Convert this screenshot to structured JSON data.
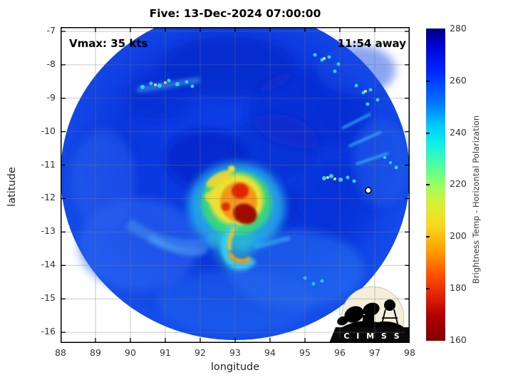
{
  "title": "Five: 13-Dec-2024 07:00:00",
  "annotations": {
    "vmax": "Vmax: 35 kts",
    "timing": "11:54 away"
  },
  "axes": {
    "xlabel": "longitude",
    "ylabel": "latitude",
    "x_ticks": [
      "88",
      "89",
      "90",
      "91",
      "92",
      "93",
      "94",
      "95",
      "96",
      "97",
      "98"
    ],
    "y_ticks": [
      "-7",
      "-8",
      "-9",
      "-10",
      "-11",
      "-12",
      "-13",
      "-14",
      "-15",
      "-16"
    ]
  },
  "colorbar": {
    "label": "Brightness Temp - Horizontal Polarization",
    "ticks": [
      "280",
      "260",
      "240",
      "220",
      "200",
      "180",
      "160"
    ]
  },
  "logo": {
    "text": "C I M S S"
  },
  "chart_data": {
    "type": "heatmap",
    "title": "Five: 13-Dec-2024 07:00:00",
    "xlabel": "longitude",
    "ylabel": "latitude",
    "xlim": [
      88,
      98
    ],
    "ylim": [
      -16.35,
      -6.87
    ],
    "x_ticks": [
      88,
      89,
      90,
      91,
      92,
      93,
      94,
      95,
      96,
      97,
      98
    ],
    "y_ticks": [
      -7,
      -8,
      -9,
      -10,
      -11,
      -12,
      -13,
      -14,
      -15,
      -16
    ],
    "grid": true,
    "colorbar": {
      "label": "Brightness Temp - Horizontal Polarization",
      "range": [
        160,
        280
      ],
      "ticks": [
        280,
        260,
        240,
        220,
        200,
        180,
        160
      ],
      "colormap": "reversed-jet: 160K dark red -> red -> orange -> yellow -> green -> cyan -> blue -> 280K dark navy"
    },
    "storm": {
      "name": "Five",
      "datetime": "13-Dec-2024 07:00:00",
      "vmax_kts": 35,
      "pass_timing": "11:54 away",
      "center_lon": 93.0,
      "center_lat": -12.5
    },
    "features": [
      {
        "name": "swath",
        "desc": "circular microwave swath centered near lon 93, lat -11.7, radius ~5 deg; background brightness temps 265-280 K (blue to dark navy), white (no data) outside"
      },
      {
        "name": "core-convection",
        "lon_range": [
          92.4,
          93.7
        ],
        "lat_range": [
          -13.1,
          -11.9
        ],
        "desc": "deep convection 160-210 K: yellow/orange mass with two dark-red cores near (93.1,-12.4) and (93.2,-12.7), surrounded by green/cyan ring 220-245 K"
      },
      {
        "name": "tail-band",
        "desc": "curved convective band 210-240 K curling from core south to lat -14 then hooking east near lon 93.5, comma shape"
      },
      {
        "name": "speckle-band-north",
        "lat": -9.0,
        "lon_range": [
          90.2,
          92.6
        ],
        "desc": "line of scattered 230-245 K cells (cyan with yellow cores)"
      },
      {
        "name": "speckles-northeast",
        "lon_range": [
          95.3,
          97.3
        ],
        "lat_range": [
          -9.5,
          -8.2
        ],
        "desc": "scattered shallow cells near swath edge"
      },
      {
        "name": "streaks-east",
        "lon_range": [
          95.5,
          97.5
        ],
        "lat_range": [
          -11.5,
          -9.8
        ],
        "desc": "diagonal cyan streaks"
      },
      {
        "name": "speckle-cluster-east",
        "lon_range": [
          94.7,
          95.7
        ],
        "lat": -12.3,
        "desc": "cluster of cyan/yellow cells"
      },
      {
        "name": "white-marker",
        "lon": 96.8,
        "lat": -12.2,
        "desc": "small white circle with black outline"
      }
    ]
  }
}
